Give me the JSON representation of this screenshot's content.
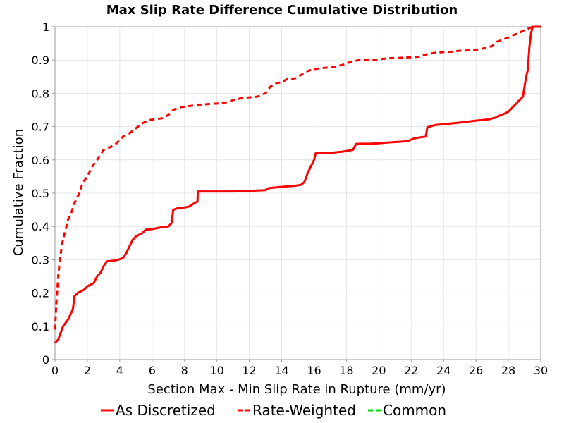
{
  "chart_data": {
    "type": "line",
    "title": "Max Slip Rate Difference Cumulative Distribution",
    "xlabel": "Section Max - Min Slip Rate in Rupture (mm/yr)",
    "ylabel": "Cumulative Fraction",
    "xlim": [
      0,
      30
    ],
    "ylim": [
      0,
      1
    ],
    "xticks": [
      0,
      2,
      4,
      6,
      8,
      10,
      12,
      14,
      16,
      18,
      20,
      22,
      24,
      26,
      28,
      30
    ],
    "yticks": [
      0,
      0.1,
      0.2,
      0.3,
      0.4,
      0.5,
      0.6,
      0.7,
      0.8,
      0.9,
      1
    ],
    "xtick_labels": [
      "0",
      "2",
      "4",
      "6",
      "8",
      "10",
      "12",
      "14",
      "16",
      "18",
      "20",
      "22",
      "24",
      "26",
      "28",
      "30"
    ],
    "ytick_labels": [
      "0",
      "0.1",
      "0.2",
      "0.3",
      "0.4",
      "0.5",
      "0.6",
      "0.7",
      "0.8",
      "0.9",
      "1"
    ],
    "grid": true,
    "legend_position": "bottom",
    "series": [
      {
        "name": "As Discretized",
        "color": "#ff0000",
        "dash": "solid",
        "points": [
          [
            0,
            0.05
          ],
          [
            0.2,
            0.06
          ],
          [
            0.35,
            0.08
          ],
          [
            0.5,
            0.1
          ],
          [
            0.8,
            0.12
          ],
          [
            1.0,
            0.14
          ],
          [
            1.1,
            0.15
          ],
          [
            1.2,
            0.19
          ],
          [
            1.4,
            0.2
          ],
          [
            1.8,
            0.21
          ],
          [
            2.0,
            0.22
          ],
          [
            2.4,
            0.23
          ],
          [
            2.6,
            0.25
          ],
          [
            2.8,
            0.26
          ],
          [
            3.0,
            0.28
          ],
          [
            3.2,
            0.295
          ],
          [
            3.6,
            0.297
          ],
          [
            3.9,
            0.3
          ],
          [
            4.2,
            0.305
          ],
          [
            4.4,
            0.32
          ],
          [
            4.6,
            0.34
          ],
          [
            4.8,
            0.36
          ],
          [
            5.0,
            0.37
          ],
          [
            5.4,
            0.38
          ],
          [
            5.6,
            0.39
          ],
          [
            6.0,
            0.392
          ],
          [
            6.5,
            0.397
          ],
          [
            7.0,
            0.4
          ],
          [
            7.2,
            0.41
          ],
          [
            7.3,
            0.45
          ],
          [
            7.6,
            0.455
          ],
          [
            8.0,
            0.457
          ],
          [
            8.3,
            0.46
          ],
          [
            8.6,
            0.47
          ],
          [
            8.8,
            0.475
          ],
          [
            8.82,
            0.505
          ],
          [
            10.0,
            0.505
          ],
          [
            11.0,
            0.505
          ],
          [
            12.0,
            0.507
          ],
          [
            13.0,
            0.509
          ],
          [
            13.2,
            0.515
          ],
          [
            13.8,
            0.518
          ],
          [
            14.2,
            0.52
          ],
          [
            14.8,
            0.522
          ],
          [
            15.2,
            0.525
          ],
          [
            15.4,
            0.533
          ],
          [
            15.6,
            0.56
          ],
          [
            15.8,
            0.58
          ],
          [
            16.0,
            0.6
          ],
          [
            16.1,
            0.62
          ],
          [
            17.0,
            0.621
          ],
          [
            17.8,
            0.625
          ],
          [
            18.4,
            0.63
          ],
          [
            18.6,
            0.648
          ],
          [
            19.5,
            0.649
          ],
          [
            20.0,
            0.65
          ],
          [
            20.5,
            0.652
          ],
          [
            21.5,
            0.655
          ],
          [
            21.8,
            0.657
          ],
          [
            22.2,
            0.665
          ],
          [
            22.6,
            0.668
          ],
          [
            22.9,
            0.67
          ],
          [
            23.0,
            0.698
          ],
          [
            23.5,
            0.705
          ],
          [
            24.0,
            0.707
          ],
          [
            25.0,
            0.712
          ],
          [
            26.0,
            0.718
          ],
          [
            26.8,
            0.722
          ],
          [
            27.2,
            0.727
          ],
          [
            27.4,
            0.732
          ],
          [
            27.8,
            0.74
          ],
          [
            28.0,
            0.745
          ],
          [
            28.5,
            0.77
          ],
          [
            28.9,
            0.79
          ],
          [
            29.1,
            0.85
          ],
          [
            29.2,
            0.87
          ],
          [
            29.3,
            0.94
          ],
          [
            29.4,
            0.98
          ],
          [
            29.5,
            1.0
          ],
          [
            30.0,
            1.0
          ]
        ]
      },
      {
        "name": "Rate-Weighted",
        "color": "#ff0000",
        "dash": "dashed",
        "points": [
          [
            0,
            0.09
          ],
          [
            0.1,
            0.18
          ],
          [
            0.2,
            0.25
          ],
          [
            0.3,
            0.3
          ],
          [
            0.45,
            0.35
          ],
          [
            0.6,
            0.38
          ],
          [
            0.8,
            0.42
          ],
          [
            1.0,
            0.44
          ],
          [
            1.2,
            0.47
          ],
          [
            1.5,
            0.5
          ],
          [
            1.7,
            0.53
          ],
          [
            2.0,
            0.55
          ],
          [
            2.3,
            0.58
          ],
          [
            2.6,
            0.6
          ],
          [
            3.0,
            0.63
          ],
          [
            3.5,
            0.64
          ],
          [
            3.8,
            0.65
          ],
          [
            4.2,
            0.67
          ],
          [
            4.6,
            0.68
          ],
          [
            5.0,
            0.695
          ],
          [
            5.4,
            0.71
          ],
          [
            5.8,
            0.72
          ],
          [
            6.2,
            0.722
          ],
          [
            6.6,
            0.725
          ],
          [
            7.0,
            0.735
          ],
          [
            7.3,
            0.75
          ],
          [
            7.6,
            0.757
          ],
          [
            8.0,
            0.76
          ],
          [
            8.8,
            0.765
          ],
          [
            9.5,
            0.768
          ],
          [
            10.2,
            0.77
          ],
          [
            10.8,
            0.775
          ],
          [
            11.0,
            0.78
          ],
          [
            11.5,
            0.785
          ],
          [
            12.0,
            0.788
          ],
          [
            12.5,
            0.79
          ],
          [
            13.0,
            0.8
          ],
          [
            13.3,
            0.82
          ],
          [
            13.6,
            0.83
          ],
          [
            14.0,
            0.833
          ],
          [
            14.3,
            0.842
          ],
          [
            14.8,
            0.845
          ],
          [
            15.2,
            0.855
          ],
          [
            15.5,
            0.865
          ],
          [
            15.9,
            0.872
          ],
          [
            16.5,
            0.876
          ],
          [
            17.2,
            0.879
          ],
          [
            17.8,
            0.886
          ],
          [
            18.3,
            0.895
          ],
          [
            18.8,
            0.9
          ],
          [
            19.5,
            0.9
          ],
          [
            20.0,
            0.902
          ],
          [
            20.5,
            0.905
          ],
          [
            21.5,
            0.907
          ],
          [
            22.5,
            0.91
          ],
          [
            23.0,
            0.918
          ],
          [
            23.5,
            0.922
          ],
          [
            24.0,
            0.924
          ],
          [
            24.5,
            0.925
          ],
          [
            25.0,
            0.928
          ],
          [
            25.5,
            0.929
          ],
          [
            26.0,
            0.931
          ],
          [
            26.5,
            0.935
          ],
          [
            27.0,
            0.942
          ],
          [
            27.3,
            0.955
          ],
          [
            27.6,
            0.96
          ],
          [
            28.0,
            0.968
          ],
          [
            28.3,
            0.975
          ],
          [
            28.6,
            0.98
          ],
          [
            29.0,
            0.99
          ],
          [
            29.5,
            1.0
          ],
          [
            30.0,
            1.0
          ]
        ]
      },
      {
        "name": "Common",
        "color": "#00dd00",
        "dash": "dashed",
        "points": []
      }
    ]
  }
}
